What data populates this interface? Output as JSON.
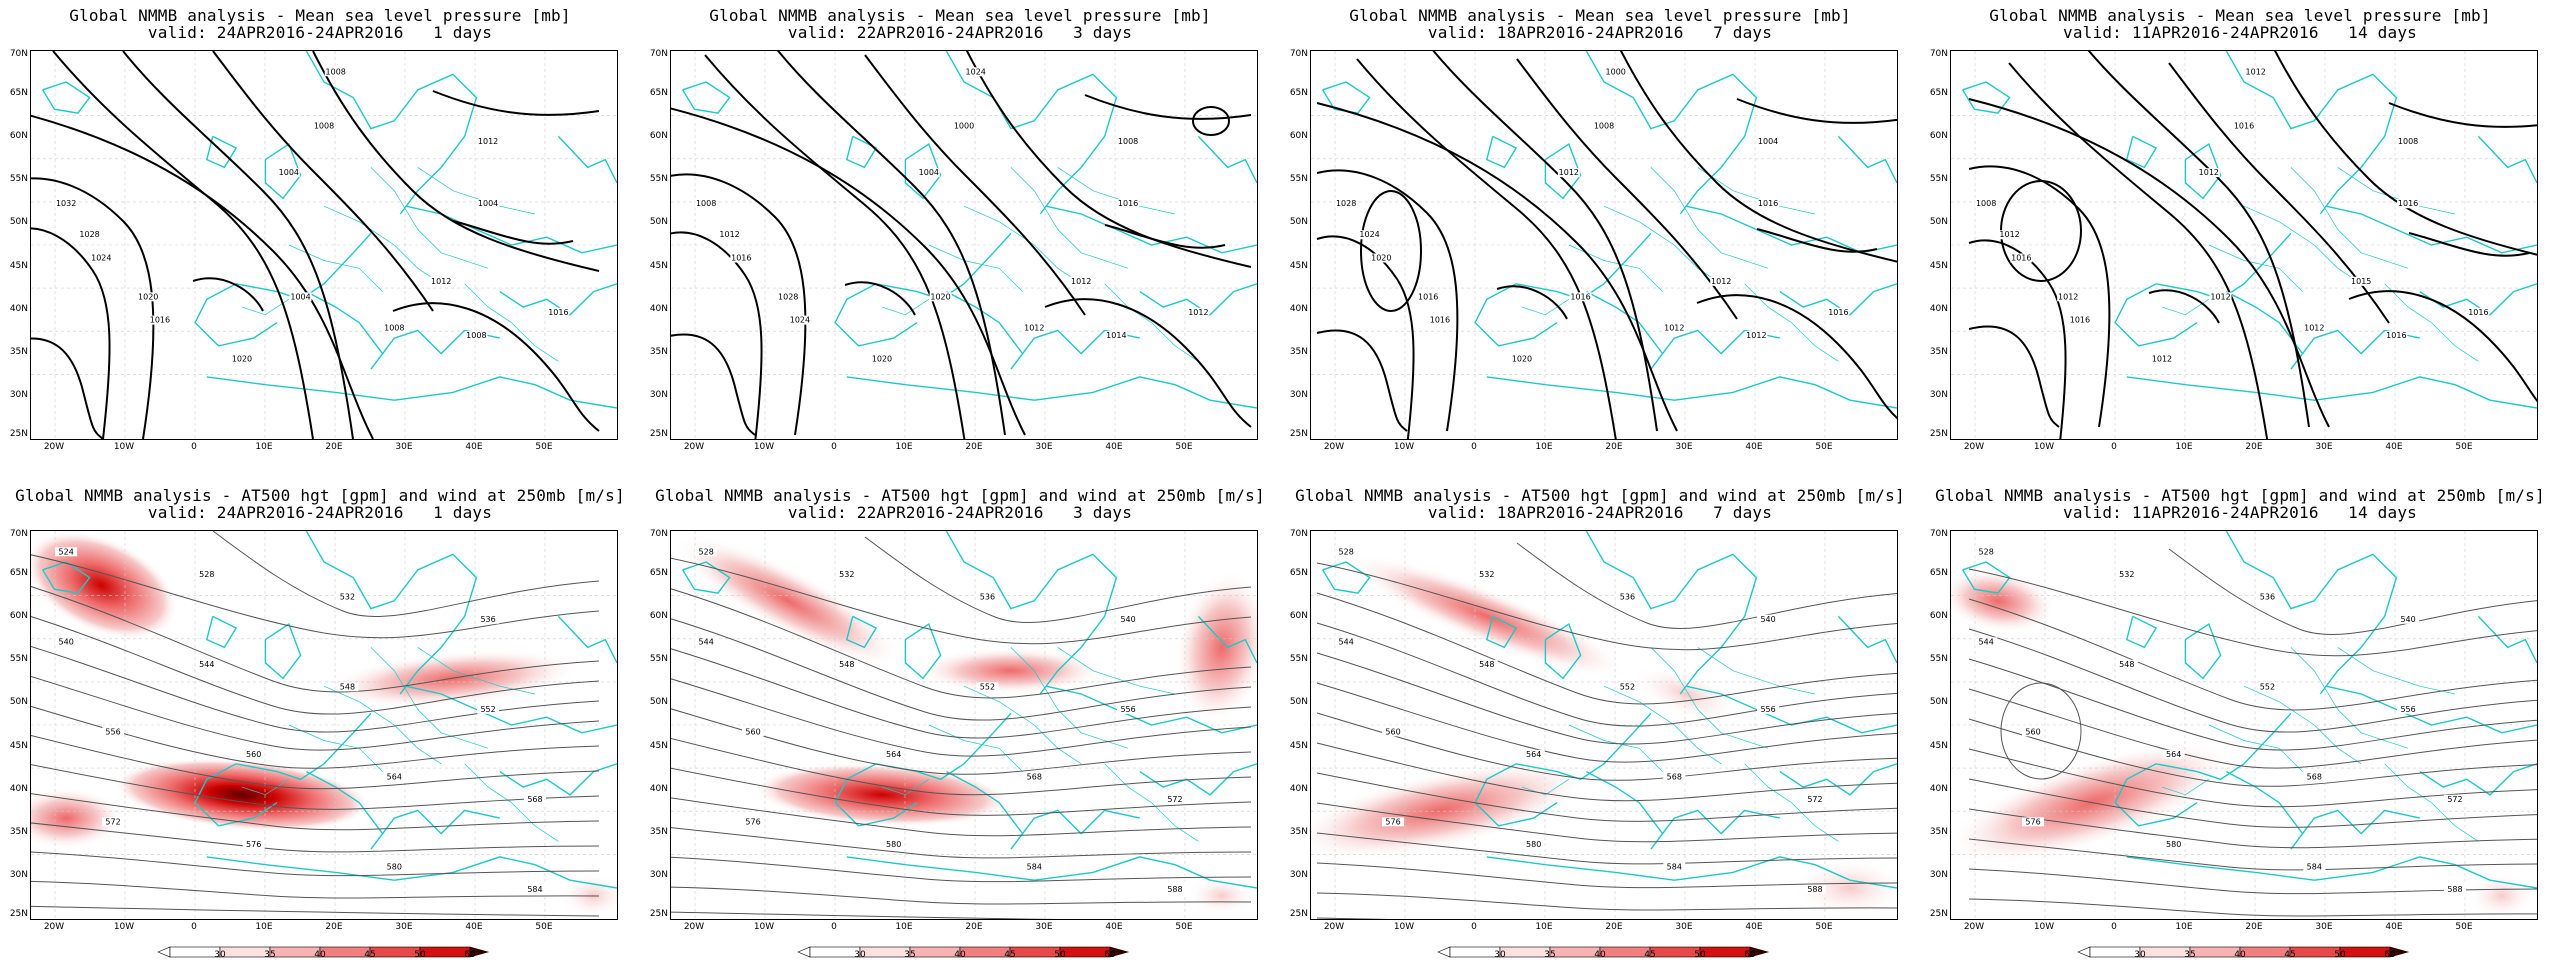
{
  "colors": {
    "coast": "#1ec8c8",
    "contour": "#000000",
    "thin_contour": "#555555",
    "wind_light": "#f7c9c9",
    "wind_mid": "#ee6a6a",
    "wind_strong": "#cc0000",
    "wind_max": "#5a0000"
  },
  "axes": {
    "y": [
      "70N",
      "65N",
      "60N",
      "55N",
      "50N",
      "45N",
      "40N",
      "35N",
      "30N",
      "25N"
    ],
    "x": [
      "20W",
      "10W",
      "0",
      "10E",
      "20E",
      "30E",
      "40E",
      "50E"
    ]
  },
  "colorbar": {
    "ticks": [
      "30",
      "35",
      "40",
      "45",
      "50",
      "60"
    ]
  },
  "panels": [
    {
      "id": "mslp-1",
      "row": 0,
      "col": 0,
      "kind": "mslp",
      "title1": "Global NMMB analysis - Mean sea level pressure [mb]",
      "title2": "valid: 24APR2016-24APR2016   1 days",
      "labels": [
        "1008",
        "1012",
        "1008",
        "1004",
        "1032",
        "1028",
        "1024",
        "1020",
        "1016",
        "1004",
        "1012",
        "1004",
        "1008",
        "1008",
        "1020",
        "1016"
      ]
    },
    {
      "id": "mslp-3",
      "row": 0,
      "col": 1,
      "kind": "mslp",
      "title1": "Global NMMB analysis - Mean sea level pressure [mb]",
      "title2": "valid: 22APR2016-24APR2016   3 days",
      "labels": [
        "1024",
        "1008",
        "1000",
        "1004",
        "1008",
        "1012",
        "1016",
        "1028",
        "1024",
        "1020",
        "1012",
        "1016",
        "1012",
        "1014",
        "1020",
        "1012"
      ]
    },
    {
      "id": "mslp-7",
      "row": 0,
      "col": 2,
      "kind": "mslp",
      "title1": "Global NMMB analysis - Mean sea level pressure [mb]",
      "title2": "valid: 18APR2016-24APR2016   7 days",
      "labels": [
        "1000",
        "1004",
        "1008",
        "1012",
        "1028",
        "1024",
        "1020",
        "1016",
        "1016",
        "1016",
        "1012",
        "1016",
        "1012",
        "1012",
        "1020",
        "1016"
      ]
    },
    {
      "id": "mslp-14",
      "row": 0,
      "col": 3,
      "kind": "mslp",
      "title1": "Global NMMB analysis - Mean sea level pressure [mb]",
      "title2": "valid: 11APR2016-24APR2016   14 days",
      "labels": [
        "1012",
        "1008",
        "1016",
        "1012",
        "1008",
        "1012",
        "1016",
        "1012",
        "1016",
        "1012",
        "1015",
        "1016",
        "1012",
        "1016",
        "1012",
        "1016"
      ]
    },
    {
      "id": "z500-1",
      "row": 1,
      "col": 0,
      "kind": "z500",
      "title1": "Global NMMB analysis - AT500 hgt [gpm] and wind at 250mb [m/s]",
      "title2": "valid: 24APR2016-24APR2016   1 days",
      "labels": [
        "524",
        "528",
        "532",
        "536",
        "540",
        "544",
        "548",
        "552",
        "556",
        "560",
        "564",
        "568",
        "572",
        "576",
        "580",
        "584"
      ]
    },
    {
      "id": "z500-3",
      "row": 1,
      "col": 1,
      "kind": "z500",
      "title1": "Global NMMB analysis - AT500 hgt [gpm] and wind at 250mb [m/s]",
      "title2": "valid: 22APR2016-24APR2016   3 days",
      "labels": [
        "528",
        "532",
        "536",
        "540",
        "544",
        "548",
        "552",
        "556",
        "560",
        "564",
        "568",
        "572",
        "576",
        "580",
        "584",
        "588"
      ]
    },
    {
      "id": "z500-7",
      "row": 1,
      "col": 2,
      "kind": "z500",
      "title1": "Global NMMB analysis - AT500 hgt [gpm] and wind at 250mb [m/s]",
      "title2": "valid: 18APR2016-24APR2016   7 days",
      "labels": [
        "528",
        "532",
        "536",
        "540",
        "544",
        "548",
        "552",
        "556",
        "560",
        "564",
        "568",
        "572",
        "576",
        "580",
        "584",
        "588"
      ]
    },
    {
      "id": "z500-14",
      "row": 1,
      "col": 3,
      "kind": "z500",
      "title1": "Global NMMB analysis - AT500 hgt [gpm] and wind at 250mb [m/s]",
      "title2": "valid: 11APR2016-24APR2016   14 days",
      "labels": [
        "528",
        "532",
        "536",
        "540",
        "544",
        "548",
        "552",
        "556",
        "560",
        "564",
        "568",
        "572",
        "576",
        "580",
        "584",
        "588"
      ]
    }
  ]
}
